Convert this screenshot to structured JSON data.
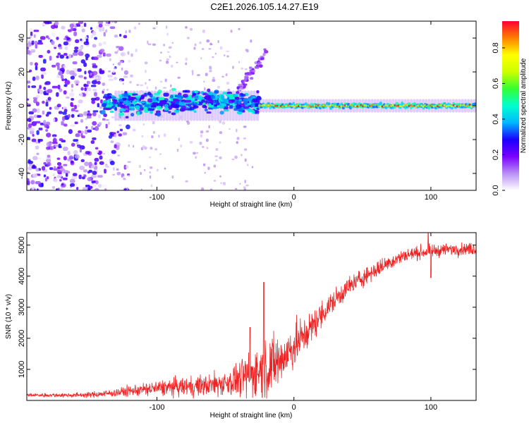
{
  "figure": {
    "title": "C2E1.2026.105.14.27.E19"
  },
  "chart_data": [
    {
      "type": "heatmap",
      "name": "spectrogram",
      "xlabel": "Height of straight line (km)",
      "ylabel": "Frequency (Hz)",
      "xlim": [
        -195,
        133
      ],
      "ylim": [
        -50,
        50
      ],
      "xticks": [
        -100,
        0,
        100
      ],
      "yticks": [
        -40,
        -20,
        0,
        20,
        40
      ],
      "colorbar": {
        "label": "Normalized spectral amplitude",
        "range": [
          0,
          0.95
        ],
        "ticks": [
          0.0,
          0.2,
          0.4,
          0.6,
          0.8
        ],
        "stops": [
          "#ffffff",
          "#b98ff5",
          "#7a00ff",
          "#1a00ff",
          "#00b7ff",
          "#00ffd0",
          "#33ff33",
          "#ccff00",
          "#ffff00",
          "#ff8000",
          "#ff0033"
        ]
      },
      "band_center_hz": 0,
      "band_halfwidth_hz": 4,
      "features": [
        {
          "x": [
            -195,
            -140
          ],
          "extent_hz": [
            -50,
            50
          ],
          "amplitude": [
            0.15,
            0.3
          ]
        },
        {
          "x": [
            -140,
            -25
          ],
          "extent_hz": [
            -8,
            10
          ],
          "amplitude": [
            0.2,
            0.5
          ]
        },
        {
          "x": [
            -40,
            -20
          ],
          "extent_hz": [
            10,
            32
          ],
          "amplitude": [
            0.1,
            0.2
          ]
        },
        {
          "x": [
            -25,
            133
          ],
          "extent_hz": [
            -3,
            3
          ],
          "amplitude": [
            0.6,
            0.95
          ]
        }
      ]
    },
    {
      "type": "line",
      "name": "snr",
      "xlabel": "Height of straight line (km)",
      "ylabel": "SNR (10 * v/v)",
      "xlim": [
        -195,
        133
      ],
      "ylim": [
        0,
        5400
      ],
      "xticks": [
        -100,
        0,
        100
      ],
      "yticks": [
        1000,
        2000,
        3000,
        4000,
        5000
      ],
      "color": "#ee2222",
      "series": [
        {
          "name": "SNR",
          "x": [
            -195,
            -180,
            -160,
            -150,
            -140,
            -130,
            -120,
            -110,
            -100,
            -90,
            -80,
            -70,
            -60,
            -50,
            -40,
            -35,
            -30,
            -25,
            -20,
            -15,
            -10,
            -5,
            0,
            10,
            20,
            30,
            40,
            50,
            60,
            70,
            80,
            90,
            100,
            110,
            120,
            133
          ],
          "trend": [
            170,
            170,
            170,
            180,
            210,
            250,
            300,
            350,
            390,
            420,
            440,
            460,
            500,
            570,
            680,
            760,
            870,
            980,
            1050,
            1150,
            1300,
            1500,
            1750,
            2200,
            2750,
            3250,
            3650,
            3950,
            4200,
            4450,
            4650,
            4750,
            4800,
            4850,
            4870,
            4880
          ],
          "noise": [
            50,
            50,
            60,
            70,
            90,
            110,
            140,
            170,
            200,
            230,
            250,
            270,
            300,
            350,
            450,
            550,
            650,
            750,
            800,
            800,
            750,
            650,
            600,
            450,
            350,
            300,
            270,
            250,
            220,
            200,
            180,
            170,
            170,
            160,
            160,
            160
          ],
          "spikes": [
            {
              "x": -22,
              "y": 3800
            },
            {
              "x": -32,
              "y": 2350
            },
            {
              "x": 98,
              "y": 5400
            },
            {
              "x": 100,
              "y": 3950
            }
          ]
        }
      ]
    }
  ]
}
